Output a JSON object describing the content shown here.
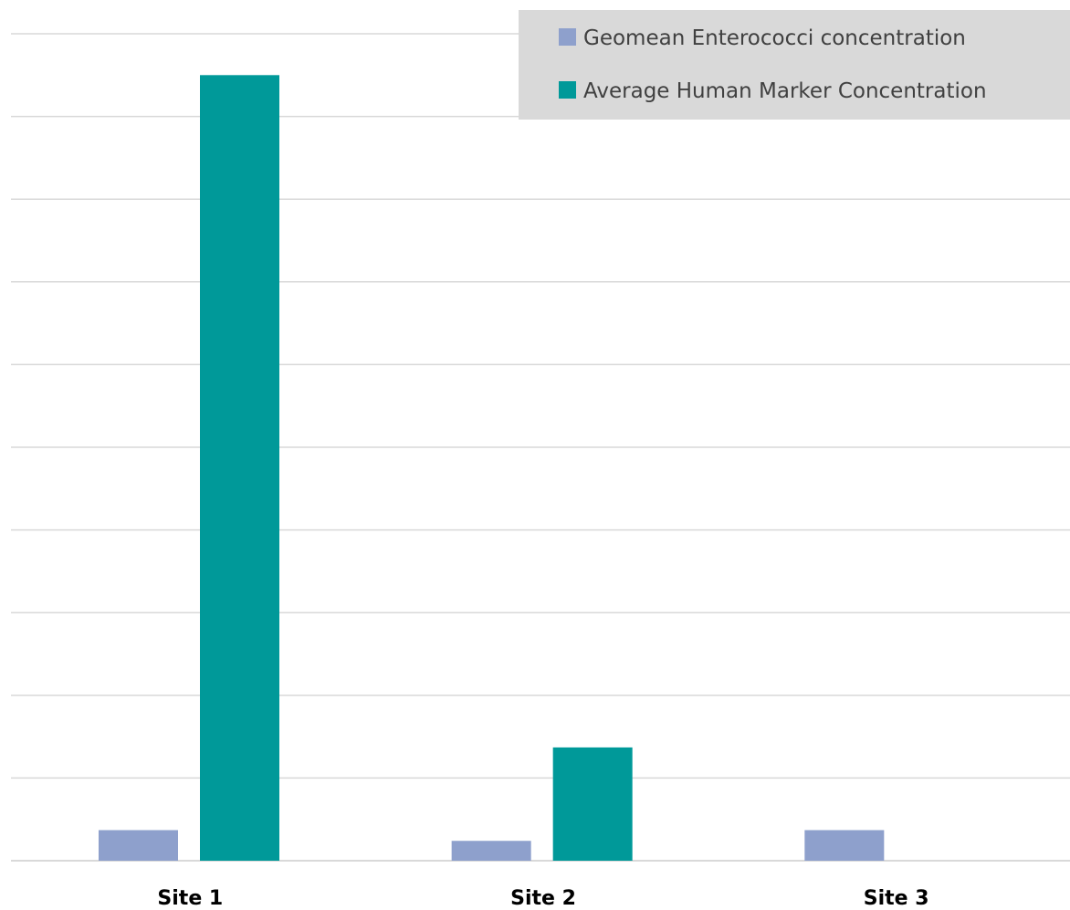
{
  "chart_data": {
    "type": "bar",
    "title": "",
    "xlabel": "",
    "ylabel": "",
    "categories": [
      "Site 1",
      "Site 2",
      "Site 3"
    ],
    "series": [
      {
        "name": "Geomean Enterococci concentration",
        "color": "#8ea0cc",
        "values": [
          3.7,
          2.4,
          3.7
        ]
      },
      {
        "name": "Average Human Marker Concentration",
        "color": "#009999",
        "values": [
          95,
          13.7,
          0
        ]
      }
    ],
    "ylim": [
      0,
      100
    ],
    "y_gridlines": [
      0,
      10,
      20,
      30,
      40,
      50,
      60,
      70,
      80,
      90,
      100
    ],
    "y_tick_labels_visible": false,
    "grid": true,
    "legend": {
      "placement": "top-right",
      "background": "#d9d9d9"
    }
  }
}
